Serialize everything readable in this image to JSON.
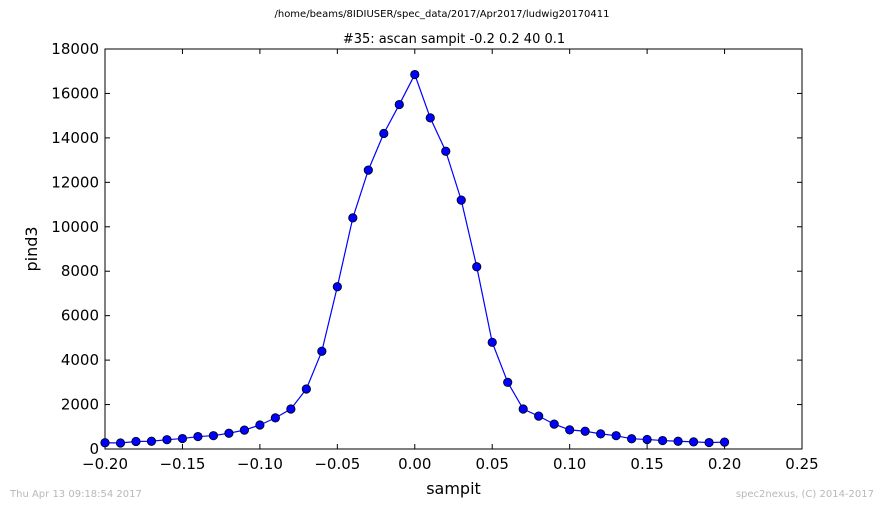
{
  "header": {
    "path": "/home/beams/8IDIUSER/spec_data/2017/Apr2017/ludwig20170411"
  },
  "footer": {
    "timestamp": "Thu Apr 13 09:18:54 2017",
    "credit": "spec2nexus, (C) 2014-2017"
  },
  "chart_data": {
    "type": "line",
    "title": "#35: ascan  sampit -0.2 0.2  40 0.1",
    "xlabel": "sampit",
    "ylabel": "pind3",
    "xlim": [
      -0.2,
      0.25
    ],
    "ylim": [
      0,
      18000
    ],
    "xticks": [
      -0.2,
      -0.15,
      -0.1,
      -0.05,
      0.0,
      0.05,
      0.1,
      0.15,
      0.2,
      0.25
    ],
    "xtick_labels": [
      "−0.20",
      "−0.15",
      "−0.10",
      "−0.05",
      "0.00",
      "0.05",
      "0.10",
      "0.15",
      "0.20",
      "0.25"
    ],
    "yticks": [
      0,
      2000,
      4000,
      6000,
      8000,
      10000,
      12000,
      14000,
      16000,
      18000
    ],
    "ytick_labels": [
      "0",
      "2000",
      "4000",
      "6000",
      "8000",
      "10000",
      "12000",
      "14000",
      "16000",
      "18000"
    ],
    "grid": false,
    "color": "#0000ff",
    "marker": "circle",
    "x": [
      -0.2,
      -0.19,
      -0.18,
      -0.17,
      -0.16,
      -0.15,
      -0.14,
      -0.13,
      -0.12,
      -0.11,
      -0.1,
      -0.09,
      -0.08,
      -0.07,
      -0.06,
      -0.05,
      -0.04,
      -0.03,
      -0.02,
      -0.01,
      0.0,
      0.01,
      0.02,
      0.03,
      0.04,
      0.05,
      0.06,
      0.07,
      0.08,
      0.09,
      0.1,
      0.11,
      0.12,
      0.13,
      0.14,
      0.15,
      0.16,
      0.17,
      0.18,
      0.19,
      0.2
    ],
    "y": [
      280,
      270,
      340,
      350,
      420,
      470,
      560,
      600,
      710,
      850,
      1080,
      1400,
      1800,
      2700,
      4400,
      7300,
      10400,
      12550,
      14200,
      15500,
      16850,
      14900,
      13400,
      11200,
      8200,
      4800,
      3000,
      1800,
      1480,
      1120,
      860,
      800,
      680,
      600,
      460,
      430,
      380,
      350,
      320,
      290,
      310
    ]
  }
}
